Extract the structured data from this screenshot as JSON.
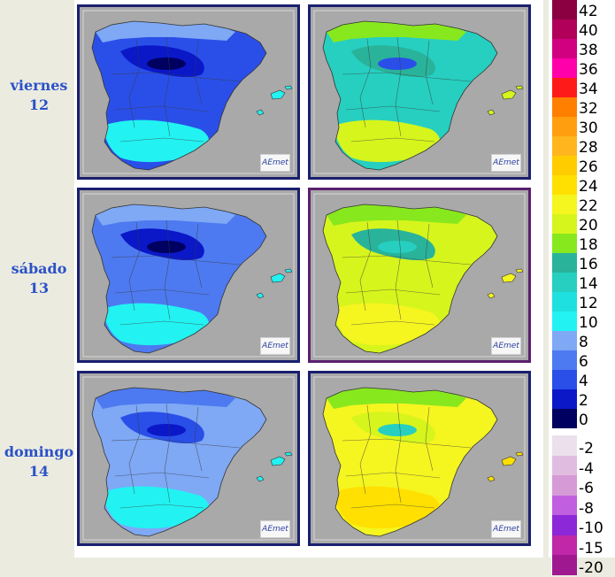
{
  "days": [
    {
      "name": "viernes",
      "num": "12"
    },
    {
      "name": "sábado",
      "num": "13"
    },
    {
      "name": "domingo",
      "num": "14"
    }
  ],
  "map_logo": "AEmet",
  "legend": {
    "positive": [
      {
        "label": "42",
        "color": "#8b0040"
      },
      {
        "label": "40",
        "color": "#b0005a"
      },
      {
        "label": "38",
        "color": "#d10080"
      },
      {
        "label": "36",
        "color": "#ff00aa"
      },
      {
        "label": "34",
        "color": "#ff1a1a"
      },
      {
        "label": "32",
        "color": "#ff7f00"
      },
      {
        "label": "30",
        "color": "#ff9f10"
      },
      {
        "label": "28",
        "color": "#ffb61e"
      },
      {
        "label": "26",
        "color": "#ffcc00"
      },
      {
        "label": "24",
        "color": "#ffe000"
      },
      {
        "label": "22",
        "color": "#f5f520"
      },
      {
        "label": "20",
        "color": "#d6f51c"
      },
      {
        "label": "18",
        "color": "#88e81e"
      },
      {
        "label": "16",
        "color": "#29b39a"
      },
      {
        "label": "14",
        "color": "#26cfc0"
      },
      {
        "label": "12",
        "color": "#1fe0e0"
      },
      {
        "label": "10",
        "color": "#22f2f2"
      },
      {
        "label": "8",
        "color": "#7fa8f5"
      },
      {
        "label": "6",
        "color": "#4d7af0"
      },
      {
        "label": "4",
        "color": "#2a4fe8"
      },
      {
        "label": "2",
        "color": "#0a18c8"
      },
      {
        "label": "0",
        "color": "#000060"
      }
    ],
    "negative": [
      {
        "label": "-2",
        "color": "#ece0ec"
      },
      {
        "label": "-4",
        "color": "#e0bde0"
      },
      {
        "label": "-6",
        "color": "#d69ad6"
      },
      {
        "label": "-8",
        "color": "#c060e0"
      },
      {
        "label": "-10",
        "color": "#8c28d8"
      },
      {
        "label": "-15",
        "color": "#c028a8"
      },
      {
        "label": "-20",
        "color": "#a01890"
      }
    ]
  },
  "maps": [
    {
      "panel": "min-viernes-12",
      "fill": "#2a4fe8",
      "cool": "#0a18c8",
      "warm": "#22f2f2",
      "accent": "#7fa8f5",
      "highlands": "#000060"
    },
    {
      "panel": "max-viernes-12",
      "fill": "#26cfc0",
      "cool": "#29b39a",
      "warm": "#d6f51c",
      "accent": "#88e81e",
      "highlands": "#2a4fe8"
    },
    {
      "panel": "min-sabado-13",
      "fill": "#4d7af0",
      "cool": "#0a18c8",
      "warm": "#22f2f2",
      "accent": "#7fa8f5",
      "highlands": "#000060"
    },
    {
      "panel": "max-sabado-13",
      "fill": "#d6f51c",
      "cool": "#29b39a",
      "warm": "#f5f520",
      "accent": "#88e81e",
      "highlands": "#26cfc0"
    },
    {
      "panel": "min-domingo-14",
      "fill": "#7fa8f5",
      "cool": "#2a4fe8",
      "warm": "#22f2f2",
      "accent": "#4d7af0",
      "highlands": "#0a18c8"
    },
    {
      "panel": "max-domingo-14",
      "fill": "#f5f520",
      "cool": "#d6f51c",
      "warm": "#ffe000",
      "accent": "#88e81e",
      "highlands": "#26cfc0"
    }
  ]
}
